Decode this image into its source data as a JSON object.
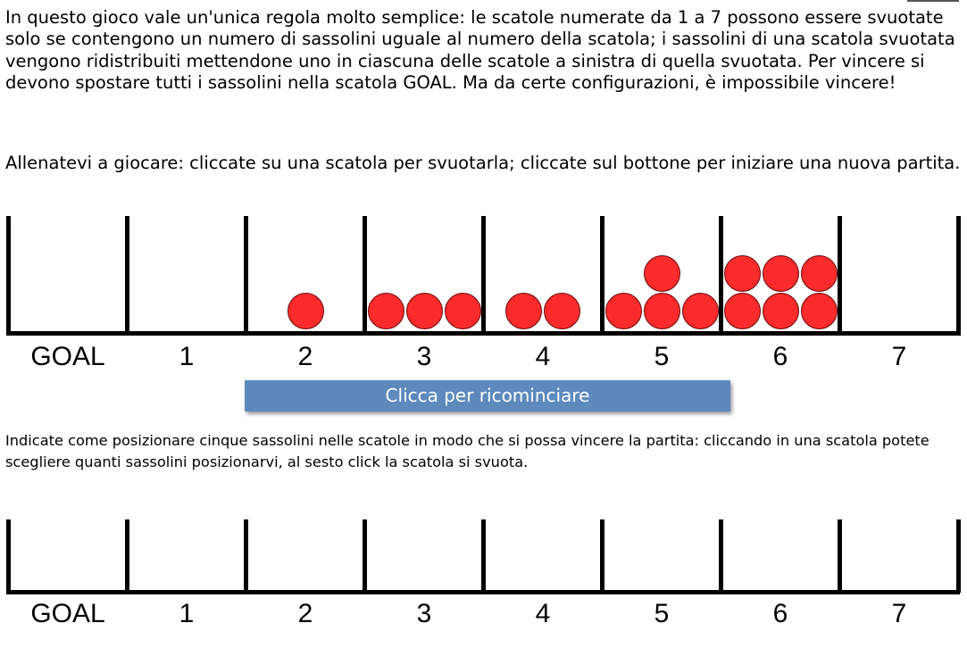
{
  "instructions": {
    "rules": "In questo gioco vale un'unica regola molto semplice: le scatole numerate da 1 a 7 possono essere svuotate solo se contengono un numero di sassolini uguale al numero della scatola; i sassolini di una scatola svuotata vengono ridistribuiti mettendone uno in ciascuna delle scatole a sinistra di quella svuotata. Per vincere si devono spostare tutti i sassolini nella scatola GOAL. Ma da certe configurazioni, è impossibile vincere!",
    "practice": "Allenatevi a giocare: cliccate su una scatola per svuotarla; cliccate sul bottone per iniziare una nuova partita.",
    "puzzle": "Indicate come posizionare cinque sassolini nelle scatole in modo che si possa vincere la partita: cliccando in una scatola potete scegliere quanti sassolini posizionarvi, al sesto click la scatola si svuota."
  },
  "colors": {
    "stone": "#fb2b2b",
    "button": "#5d89bd"
  },
  "practice_board": {
    "boxes": [
      {
        "label": "GOAL",
        "stones": 0
      },
      {
        "label": "1",
        "stones": 0
      },
      {
        "label": "2",
        "stones": 1
      },
      {
        "label": "3",
        "stones": 3
      },
      {
        "label": "4",
        "stones": 2
      },
      {
        "label": "5",
        "stones": 4
      },
      {
        "label": "6",
        "stones": 6
      },
      {
        "label": "7",
        "stones": 0
      }
    ]
  },
  "restart_button": {
    "label": "Clicca per ricominciare"
  },
  "puzzle_board": {
    "boxes": [
      {
        "label": "GOAL",
        "stones": 0
      },
      {
        "label": "1",
        "stones": 0
      },
      {
        "label": "2",
        "stones": 0
      },
      {
        "label": "3",
        "stones": 0
      },
      {
        "label": "4",
        "stones": 0
      },
      {
        "label": "5",
        "stones": 0
      },
      {
        "label": "6",
        "stones": 0
      },
      {
        "label": "7",
        "stones": 0
      }
    ]
  }
}
